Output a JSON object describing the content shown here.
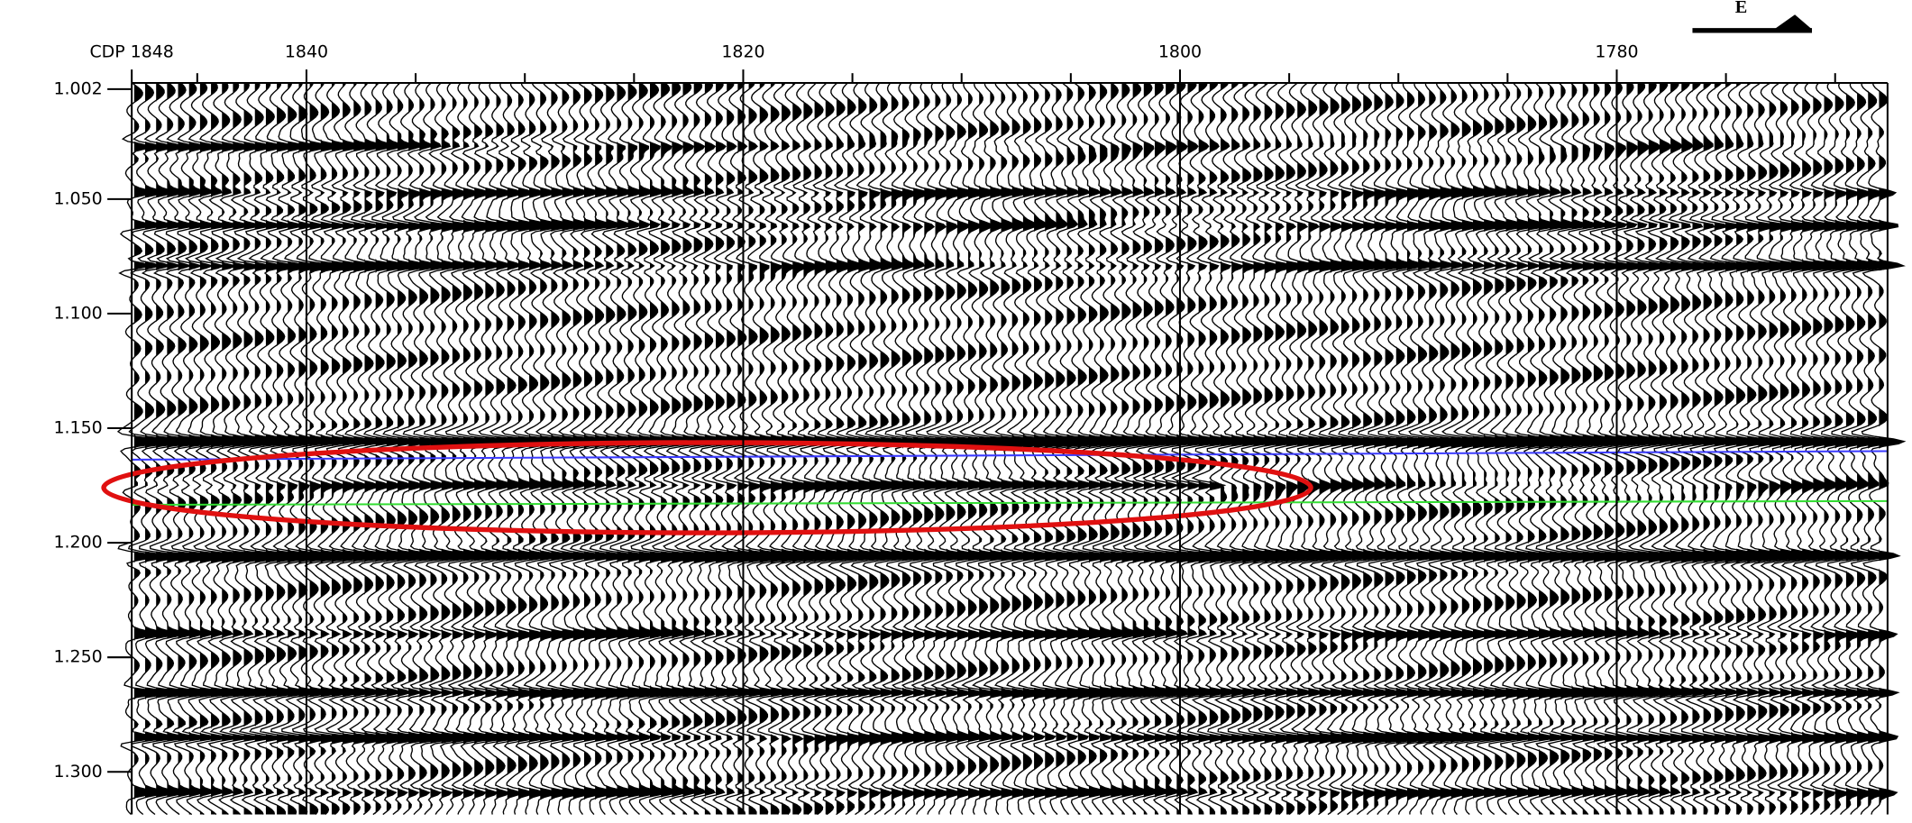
{
  "chart_data": {
    "type": "wiggle",
    "direction_label": "E",
    "xlim": [
      1848,
      1767.6
    ],
    "xticks": [
      {
        "value": 1848,
        "label": "CDP 1848"
      },
      1840,
      1820,
      1800,
      1780
    ],
    "xminorticks": [
      1845,
      1835,
      1830,
      1825,
      1815,
      1810,
      1805,
      1795,
      1790,
      1785,
      1775,
      1770
    ],
    "ylim": [
      0.9993,
      1.3186
    ],
    "yticks": [
      1.002,
      {
        "value": 1.05,
        "label": "1.050"
      },
      {
        "value": 1.1,
        "label": "1.100"
      },
      {
        "value": 1.15,
        "label": "1.150"
      },
      {
        "value": 1.2,
        "label": "1.200"
      },
      {
        "value": 1.25,
        "label": "1.250"
      },
      {
        "value": 1.3,
        "label": "1.300"
      }
    ],
    "grid": true
  }
}
